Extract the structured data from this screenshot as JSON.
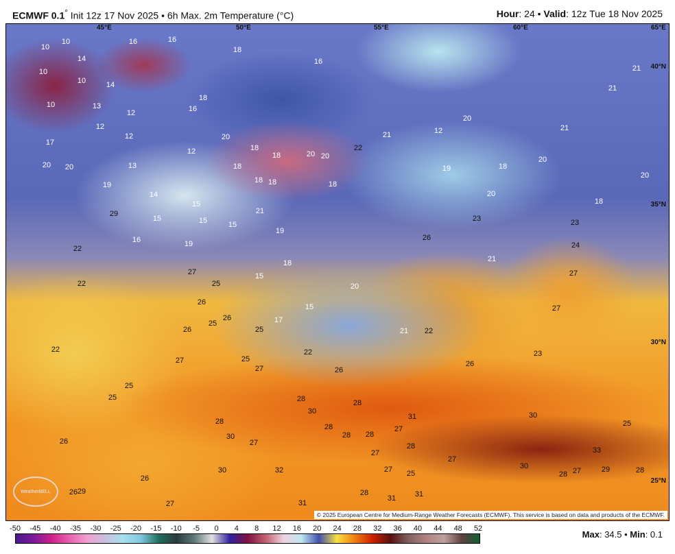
{
  "header": {
    "model": "ECMWF 0.1",
    "degree": "°",
    "init": "Init 12z 17 Nov 2025",
    "product": "6h Max. 2m Temperature (°C)",
    "hour_label": "Hour",
    "hour": "24",
    "valid_label": "Valid",
    "valid": "12z Tue 18 Nov 2025"
  },
  "map": {
    "lon_labels": [
      "45°E",
      "50°E",
      "55°E",
      "60°E",
      "65°E"
    ],
    "lat_labels": [
      "40°N",
      "35°N",
      "30°N",
      "25°N"
    ],
    "temperature_labels": [
      "10",
      "10",
      "16",
      "16",
      "18",
      "14",
      "10",
      "10",
      "14",
      "16",
      "21",
      "21",
      "10",
      "13",
      "16",
      "18",
      "12",
      "12",
      "12",
      "20",
      "21",
      "21",
      "12",
      "17",
      "20",
      "18",
      "20",
      "20",
      "22",
      "18",
      "12",
      "13",
      "20",
      "20",
      "18",
      "19",
      "18",
      "20",
      "20",
      "18",
      "18",
      "18",
      "20",
      "19",
      "14",
      "15",
      "18",
      "21",
      "29",
      "15",
      "15",
      "15",
      "23",
      "23",
      "19",
      "16",
      "19",
      "26",
      "24",
      "22",
      "21",
      "18",
      "27",
      "27",
      "15",
      "25",
      "22",
      "20",
      "26",
      "15",
      "27",
      "25",
      "26",
      "17",
      "26",
      "25",
      "21",
      "22",
      "22",
      "27",
      "25",
      "22",
      "23",
      "27",
      "26",
      "26",
      "25",
      "25",
      "28",
      "28",
      "30",
      "31",
      "30",
      "28",
      "25",
      "30",
      "27",
      "28",
      "28",
      "28",
      "27",
      "26",
      "27",
      "33",
      "27",
      "30",
      "32",
      "26",
      "30",
      "27",
      "29",
      "28",
      "28",
      "27",
      "25",
      "29",
      "26",
      "27",
      "28",
      "31",
      "31",
      "31",
      "28",
      "26"
    ],
    "copyright": "© 2025 European Centre for Medium-Range Weather Forecasts (ECMWF). This service is based on data and products of the ECMWF.",
    "logo": "WeatherBELL"
  },
  "colorbar": {
    "ticks": [
      "-50",
      "-45",
      "-40",
      "-35",
      "-30",
      "-25",
      "-20",
      "-15",
      "-10",
      "-5",
      "0",
      "4",
      "8",
      "12",
      "16",
      "20",
      "24",
      "28",
      "32",
      "36",
      "40",
      "44",
      "48",
      "52"
    ]
  },
  "stats": {
    "max_label": "Max",
    "max": "34.5",
    "min_label": "Min",
    "min": "0.1"
  }
}
